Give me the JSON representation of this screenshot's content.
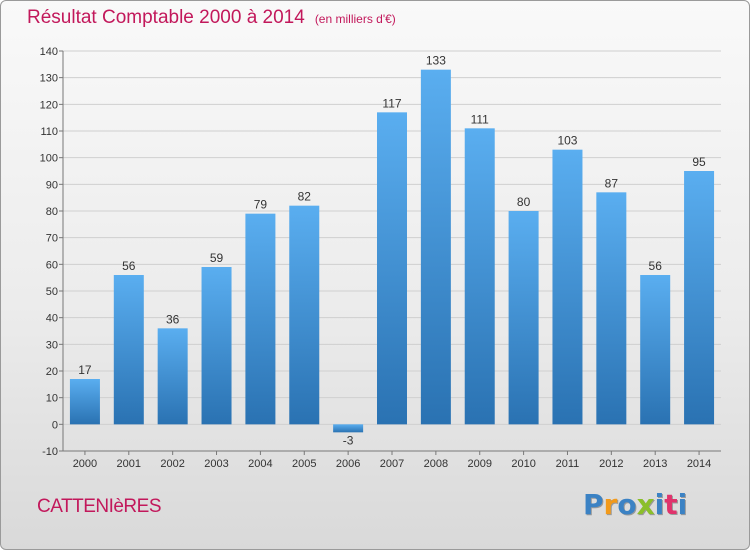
{
  "title": "Résultat Comptable 2000 à 2014",
  "subtitle": "(en milliers d'€)",
  "city": "CATTENIèRES",
  "brand": {
    "text": "Proxiti",
    "letter_colors": [
      "#3b82c4",
      "#f29a1b",
      "#3b82c4",
      "#8bbf2a",
      "#3b82c4",
      "#e0336c",
      "#3b82c4"
    ]
  },
  "colors": {
    "bar_top": "#5aaef0",
    "bar_bottom": "#2a72b2",
    "title": "#c2185b",
    "grid": "#cfcfcf"
  },
  "chart_data": {
    "type": "bar",
    "title": "Résultat Comptable 2000 à 2014",
    "subtitle": "(en milliers d'€)",
    "categories": [
      "2000",
      "2001",
      "2002",
      "2003",
      "2004",
      "2005",
      "2006",
      "2007",
      "2008",
      "2009",
      "2010",
      "2011",
      "2012",
      "2013",
      "2014"
    ],
    "values": [
      17,
      56,
      36,
      59,
      79,
      82,
      -3,
      117,
      133,
      111,
      80,
      103,
      87,
      56,
      95
    ],
    "ylim": [
      -10,
      140
    ],
    "yticks": [
      -10,
      0,
      10,
      20,
      30,
      40,
      50,
      60,
      70,
      80,
      90,
      100,
      110,
      120,
      130,
      140
    ],
    "grid": true,
    "data_labels": true
  }
}
